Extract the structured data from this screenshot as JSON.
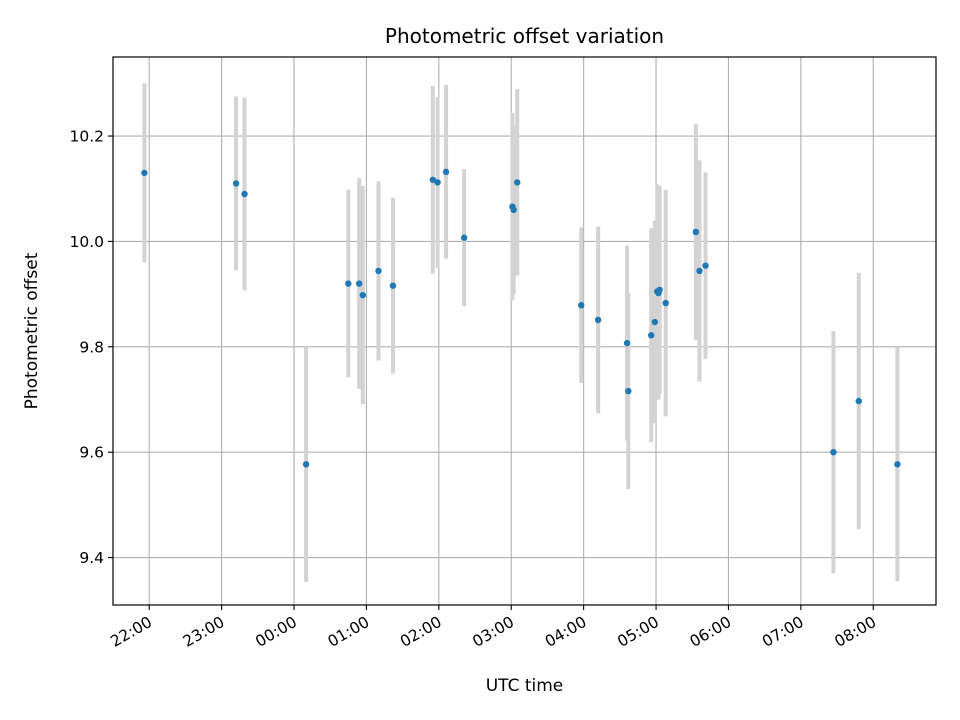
{
  "chart_data": {
    "type": "scatter",
    "title": "Photometric offset variation",
    "xlabel": "UTC time",
    "ylabel": "Photometric offset",
    "x_axis_kind": "time",
    "xlim": [
      "21:30",
      "08:52"
    ],
    "ylim": [
      9.31,
      10.35
    ],
    "x_ticks": [
      "22:00",
      "23:00",
      "00:00",
      "01:00",
      "02:00",
      "03:00",
      "04:00",
      "05:00",
      "06:00",
      "07:00",
      "08:00"
    ],
    "y_ticks": [
      9.4,
      9.6,
      9.8,
      10.0,
      10.2
    ],
    "y_tick_labels": [
      "9.4",
      "9.6",
      "9.8",
      "10.0",
      "10.2"
    ],
    "grid": true,
    "colors": {
      "marker": "#1f77b4",
      "errorbar": "#d3d3d3",
      "grid": "#b0b0b0"
    },
    "series": [
      {
        "points": [
          {
            "x": "21:56",
            "y": 10.13,
            "err": 0.17
          },
          {
            "x": "23:12",
            "y": 10.11,
            "err": 0.165
          },
          {
            "x": "23:19",
            "y": 10.09,
            "err": 0.183
          },
          {
            "x": "00:10",
            "y": 9.577,
            "err": 0.223
          },
          {
            "x": "00:45",
            "y": 9.92,
            "err": 0.178
          },
          {
            "x": "00:54",
            "y": 9.92,
            "err": 0.2
          },
          {
            "x": "00:57",
            "y": 9.898,
            "err": 0.207
          },
          {
            "x": "01:10",
            "y": 9.944,
            "err": 0.17
          },
          {
            "x": "01:22",
            "y": 9.916,
            "err": 0.167
          },
          {
            "x": "01:55",
            "y": 10.117,
            "err": 0.178
          },
          {
            "x": "01:59",
            "y": 10.112,
            "err": 0.162
          },
          {
            "x": "02:06",
            "y": 10.132,
            "err": 0.165
          },
          {
            "x": "02:21",
            "y": 10.007,
            "err": 0.13
          },
          {
            "x": "03:01",
            "y": 10.066,
            "err": 0.178
          },
          {
            "x": "03:02",
            "y": 10.06,
            "err": 0.16
          },
          {
            "x": "03:05",
            "y": 10.112,
            "err": 0.177
          },
          {
            "x": "03:58",
            "y": 9.879,
            "err": 0.148
          },
          {
            "x": "04:12",
            "y": 9.851,
            "err": 0.177
          },
          {
            "x": "04:36",
            "y": 9.807,
            "err": 0.185
          },
          {
            "x": "04:37",
            "y": 9.716,
            "err": 0.186
          },
          {
            "x": "04:56",
            "y": 9.822,
            "err": 0.203
          },
          {
            "x": "04:59",
            "y": 9.847,
            "err": 0.192
          },
          {
            "x": "05:01",
            "y": 9.905,
            "err": 0.203
          },
          {
            "x": "05:02",
            "y": 9.902,
            "err": 0.202
          },
          {
            "x": "05:03",
            "y": 9.908,
            "err": 0.197
          },
          {
            "x": "05:08",
            "y": 9.883,
            "err": 0.215
          },
          {
            "x": "05:33",
            "y": 10.018,
            "err": 0.205
          },
          {
            "x": "05:36",
            "y": 9.944,
            "err": 0.21
          },
          {
            "x": "05:41",
            "y": 9.954,
            "err": 0.177
          },
          {
            "x": "07:27",
            "y": 9.6,
            "err": 0.23
          },
          {
            "x": "07:48",
            "y": 9.697,
            "err": 0.243
          },
          {
            "x": "08:20",
            "y": 9.577,
            "err": 0.222
          }
        ]
      }
    ]
  }
}
